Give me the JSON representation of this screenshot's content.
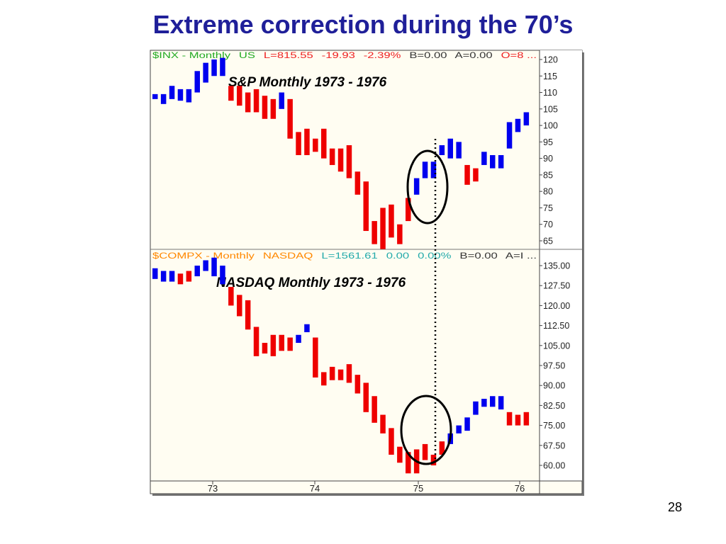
{
  "slide": {
    "title": "Extreme correction during the 70’s",
    "page_number": "28"
  },
  "colors": {
    "up": "#0000ee",
    "down": "#ee0000",
    "header_green": "#22aa22",
    "header_red": "#ee2222",
    "header_orange": "#ff8800",
    "header_teal": "#22aaaa",
    "title": "#1f1f99"
  },
  "chart_data": [
    {
      "type": "bar",
      "title": "S&P Monthly 1973 - 1976",
      "header": {
        "symbol": "$INX - Monthly",
        "exchange": "US",
        "last": "L=815.55",
        "change": "-19.93",
        "pct": "-2.39%",
        "bid": "B=0.00",
        "ask": "A=0.00",
        "open": "O=8 ..."
      },
      "y_ticks": [
        "120",
        "115",
        "110",
        "105",
        "100",
        "95",
        "90",
        "85",
        "80",
        "75",
        "70",
        "65"
      ],
      "ylim": [
        62.5,
        122.5
      ],
      "x_ticks": [
        "73",
        "74",
        "75",
        "76"
      ],
      "series": [
        {
          "values": [
            {
              "d": "1973-01",
              "o": 109.5,
              "c": 108,
              "dir": "up"
            },
            {
              "d": "1973-02",
              "o": 106.5,
              "c": 109.5,
              "dir": "up"
            },
            {
              "d": "1973-03",
              "o": 108,
              "c": 112,
              "dir": "up"
            },
            {
              "d": "1973-04",
              "o": 107.5,
              "c": 111,
              "dir": "up"
            },
            {
              "d": "1973-05",
              "o": 107,
              "c": 111,
              "dir": "up"
            },
            {
              "d": "1973-06",
              "o": 110,
              "c": 116.5,
              "dir": "up"
            },
            {
              "d": "1973-07",
              "o": 113,
              "c": 119,
              "dir": "up"
            },
            {
              "d": "1973-08",
              "o": 115,
              "c": 120,
              "dir": "up"
            },
            {
              "d": "1973-09",
              "o": 115,
              "c": 120.5,
              "dir": "up"
            },
            {
              "d": "1973-10",
              "o": 112,
              "c": 107.5,
              "dir": "down"
            },
            {
              "d": "1973-11",
              "o": 112,
              "c": 106,
              "dir": "down"
            },
            {
              "d": "1973-12",
              "o": 110,
              "c": 104,
              "dir": "down"
            },
            {
              "d": "1974-01",
              "o": 111,
              "c": 104,
              "dir": "down"
            },
            {
              "d": "1974-02",
              "o": 109,
              "c": 102,
              "dir": "down"
            },
            {
              "d": "1974-03",
              "o": 108,
              "c": 102,
              "dir": "down"
            },
            {
              "d": "1974-04",
              "o": 110,
              "c": 105,
              "dir": "up"
            },
            {
              "d": "1974-05",
              "o": 108,
              "c": 96,
              "dir": "down"
            },
            {
              "d": "1974-06",
              "o": 98,
              "c": 91,
              "dir": "down"
            },
            {
              "d": "1974-07",
              "o": 99,
              "c": 91,
              "dir": "down"
            },
            {
              "d": "1974-08",
              "o": 96,
              "c": 92,
              "dir": "down"
            },
            {
              "d": "1974-09",
              "o": 99,
              "c": 90,
              "dir": "down"
            },
            {
              "d": "1974-10",
              "o": 93,
              "c": 88,
              "dir": "down"
            },
            {
              "d": "1974-11",
              "o": 93,
              "c": 86,
              "dir": "down"
            },
            {
              "d": "1974-12",
              "o": 94,
              "c": 84,
              "dir": "down"
            },
            {
              "d": "1975-01",
              "o": 86,
              "c": 79,
              "dir": "down"
            },
            {
              "d": "1975-02",
              "o": 83,
              "c": 68,
              "dir": "down"
            },
            {
              "d": "1975-03",
              "o": 71,
              "c": 64,
              "dir": "down"
            },
            {
              "d": "1975-04",
              "o": 75,
              "c": 62.5,
              "dir": "down"
            },
            {
              "d": "1975-05",
              "o": 76,
              "c": 66,
              "dir": "down"
            },
            {
              "d": "1975-06",
              "o": 70,
              "c": 64,
              "dir": "down"
            },
            {
              "d": "1975-07",
              "o": 78,
              "c": 71,
              "dir": "down"
            },
            {
              "d": "1975-08",
              "o": 79,
              "c": 84,
              "dir": "up"
            },
            {
              "d": "1975-09",
              "o": 84,
              "c": 89,
              "dir": "up"
            },
            {
              "d": "1975-10",
              "o": 84,
              "c": 89,
              "dir": "up"
            },
            {
              "d": "1975-11",
              "o": 91,
              "c": 94,
              "dir": "up"
            },
            {
              "d": "1975-12",
              "o": 90,
              "c": 96,
              "dir": "up"
            },
            {
              "d": "1976-01",
              "o": 90,
              "c": 95,
              "dir": "up"
            },
            {
              "d": "1976-02",
              "o": 82,
              "c": 88,
              "dir": "down"
            },
            {
              "d": "1976-03",
              "o": 83,
              "c": 87,
              "dir": "down"
            },
            {
              "d": "1976-04",
              "o": 88,
              "c": 92,
              "dir": "up"
            },
            {
              "d": "1976-05",
              "o": 87,
              "c": 91,
              "dir": "up"
            },
            {
              "d": "1976-06",
              "o": 87,
              "c": 91,
              "dir": "up"
            },
            {
              "d": "1976-07",
              "o": 93,
              "c": 101,
              "dir": "up"
            },
            {
              "d": "1976-08",
              "o": 98,
              "c": 102,
              "dir": "up"
            },
            {
              "d": "1976-09",
              "o": 100,
              "c": 104,
              "dir": "up"
            }
          ]
        }
      ]
    },
    {
      "type": "bar",
      "title": "NASDAQ Monthly 1973 - 1976",
      "header": {
        "symbol": "$COMPX - Monthly",
        "exchange": "NASDAQ",
        "last": "L=1561.61",
        "change": "0.00",
        "pct": "0.00%",
        "bid": "B=0.00",
        "ask": "A=I ..."
      },
      "y_ticks": [
        "135.00",
        "127.50",
        "120.00",
        "112.50",
        "105.00",
        "97.50",
        "90.00",
        "82.50",
        "75.00",
        "67.50",
        "60.00"
      ],
      "ylim": [
        56.5,
        138.5
      ],
      "x_ticks": [
        "73",
        "74",
        "75",
        "76"
      ],
      "series": [
        {
          "values": [
            {
              "d": "1973-01",
              "o": 130,
              "c": 134,
              "dir": "up"
            },
            {
              "d": "1973-02",
              "o": 129,
              "c": 133,
              "dir": "up"
            },
            {
              "d": "1973-03",
              "o": 129,
              "c": 133,
              "dir": "up"
            },
            {
              "d": "1973-04",
              "o": 128,
              "c": 132,
              "dir": "down"
            },
            {
              "d": "1973-05",
              "o": 129,
              "c": 133,
              "dir": "down"
            },
            {
              "d": "1973-06",
              "o": 131,
              "c": 135,
              "dir": "up"
            },
            {
              "d": "1973-07",
              "o": 133,
              "c": 137,
              "dir": "up"
            },
            {
              "d": "1973-08",
              "o": 131,
              "c": 138,
              "dir": "up"
            },
            {
              "d": "1973-09",
              "o": 128,
              "c": 135,
              "dir": "up"
            },
            {
              "d": "1973-10",
              "o": 127,
              "c": 120,
              "dir": "down"
            },
            {
              "d": "1973-11",
              "o": 124,
              "c": 116,
              "dir": "down"
            },
            {
              "d": "1973-12",
              "o": 122,
              "c": 111,
              "dir": "down"
            },
            {
              "d": "1974-01",
              "o": 112,
              "c": 101,
              "dir": "down"
            },
            {
              "d": "1974-02",
              "o": 106,
              "c": 102,
              "dir": "down"
            },
            {
              "d": "1974-03",
              "o": 109,
              "c": 101,
              "dir": "down"
            },
            {
              "d": "1974-04",
              "o": 109,
              "c": 103,
              "dir": "down"
            },
            {
              "d": "1974-05",
              "o": 108,
              "c": 103,
              "dir": "down"
            },
            {
              "d": "1974-06",
              "o": 109,
              "c": 106,
              "dir": "up"
            },
            {
              "d": "1974-07",
              "o": 113,
              "c": 110,
              "dir": "up"
            },
            {
              "d": "1974-08",
              "o": 108,
              "c": 93,
              "dir": "down"
            },
            {
              "d": "1974-09",
              "o": 95,
              "c": 90,
              "dir": "down"
            },
            {
              "d": "1974-10",
              "o": 97,
              "c": 92,
              "dir": "down"
            },
            {
              "d": "1974-11",
              "o": 96,
              "c": 92,
              "dir": "down"
            },
            {
              "d": "1974-12",
              "o": 98,
              "c": 91,
              "dir": "down"
            },
            {
              "d": "1975-01",
              "o": 94,
              "c": 87,
              "dir": "down"
            },
            {
              "d": "1975-02",
              "o": 91,
              "c": 80,
              "dir": "down"
            },
            {
              "d": "1975-03",
              "o": 86,
              "c": 76,
              "dir": "down"
            },
            {
              "d": "1975-04",
              "o": 79,
              "c": 72,
              "dir": "down"
            },
            {
              "d": "1975-05",
              "o": 74,
              "c": 64,
              "dir": "down"
            },
            {
              "d": "1975-06",
              "o": 67,
              "c": 61,
              "dir": "down"
            },
            {
              "d": "1975-07",
              "o": 65,
              "c": 57,
              "dir": "down"
            },
            {
              "d": "1975-08",
              "o": 66,
              "c": 57,
              "dir": "down"
            },
            {
              "d": "1975-09",
              "o": 68,
              "c": 62,
              "dir": "down"
            },
            {
              "d": "1975-10",
              "o": 64,
              "c": 60,
              "dir": "down"
            },
            {
              "d": "1975-11",
              "o": 69,
              "c": 64,
              "dir": "down"
            },
            {
              "d": "1975-12",
              "o": 72,
              "c": 68,
              "dir": "up"
            },
            {
              "d": "1976-01",
              "o": 75,
              "c": 72,
              "dir": "up"
            },
            {
              "d": "1976-02",
              "o": 78,
              "c": 73,
              "dir": "up"
            },
            {
              "d": "1976-03",
              "o": 84,
              "c": 79,
              "dir": "up"
            },
            {
              "d": "1976-04",
              "o": 85,
              "c": 82,
              "dir": "up"
            },
            {
              "d": "1976-05",
              "o": 86,
              "c": 82,
              "dir": "up"
            },
            {
              "d": "1976-06",
              "o": 86,
              "c": 81,
              "dir": "up"
            },
            {
              "d": "1976-07",
              "o": 80,
              "c": 75,
              "dir": "down"
            },
            {
              "d": "1976-08",
              "o": 79,
              "c": 75,
              "dir": "down"
            },
            {
              "d": "1976-09",
              "o": 80,
              "c": 75,
              "dir": "down"
            }
          ]
        }
      ]
    }
  ]
}
